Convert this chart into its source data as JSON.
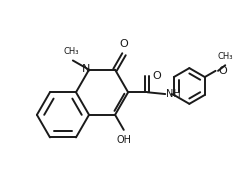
{
  "bg_color": "#ffffff",
  "line_color": "#1a1a1a",
  "line_width": 1.4,
  "font_size": 7.0,
  "figsize": [
    2.5,
    1.85
  ],
  "dpi": 100,
  "xlim": [
    0,
    10
  ],
  "ylim": [
    0,
    7.4
  ]
}
